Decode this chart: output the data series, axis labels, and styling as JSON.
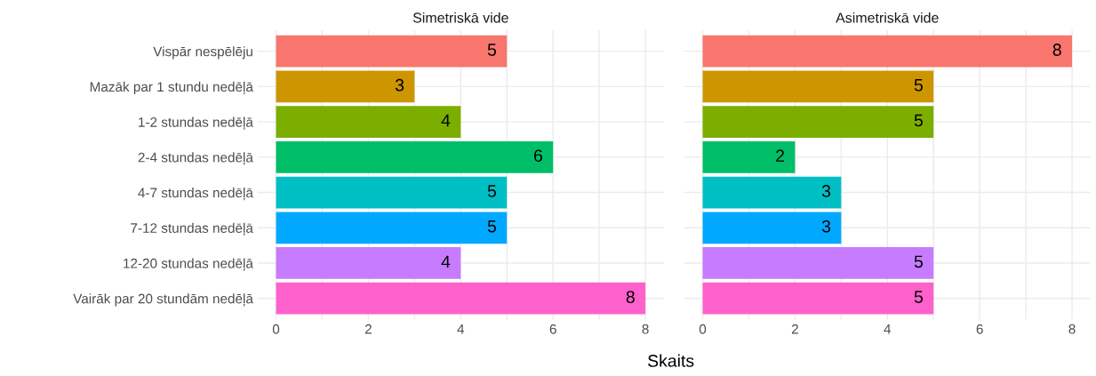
{
  "chart_data": [
    {
      "type": "bar",
      "orientation": "horizontal",
      "title": "Simetriskā vide",
      "xlabel": "Skaits",
      "categories": [
        "Vispār nespēlēju",
        "Mazāk par 1 stundu nedēļā",
        "1-2 stundas nedēļā",
        "2-4 stundas nedēļā",
        "4-7 stundas nedēļā",
        "7-12 stundas nedēļā",
        "12-20 stundas nedēļā",
        "Vairāk par 20 stundām nedēļā"
      ],
      "values": [
        5,
        3,
        4,
        6,
        5,
        5,
        4,
        8
      ],
      "colors": [
        "#f8766d",
        "#cd9600",
        "#7cae00",
        "#00be67",
        "#00bfc4",
        "#00a9ff",
        "#c77cff",
        "#ff61cc"
      ],
      "xlim": [
        -0.4,
        8.4
      ],
      "xticks": [
        0,
        {
          "value": 1,
          "label": null
        },
        2,
        {
          "value": 3,
          "label": null
        },
        4,
        {
          "value": 5,
          "label": null
        },
        6,
        {
          "value": 7,
          "label": null
        },
        8
      ],
      "data_labels": true,
      "grid": true
    },
    {
      "type": "bar",
      "orientation": "horizontal",
      "title": "Asimetriskā vide",
      "categories": [
        null,
        null,
        null,
        null,
        null,
        null,
        null,
        null
      ],
      "values": [
        8,
        5,
        5,
        2,
        3,
        3,
        5,
        5
      ],
      "colors": [
        "#f8766d",
        "#cd9600",
        "#7cae00",
        "#00be67",
        "#00bfc4",
        "#00a9ff",
        "#c77cff",
        "#ff61cc"
      ],
      "xlim": [
        -0.4,
        8.4
      ],
      "xticks": [
        0,
        {
          "value": 1,
          "label": null
        },
        2,
        {
          "value": 3,
          "label": null
        },
        4,
        {
          "value": 5,
          "label": null
        },
        6,
        {
          "value": 7,
          "label": null
        },
        8
      ],
      "data_labels": true,
      "grid": true,
      "tick_labels": "x"
    }
  ]
}
